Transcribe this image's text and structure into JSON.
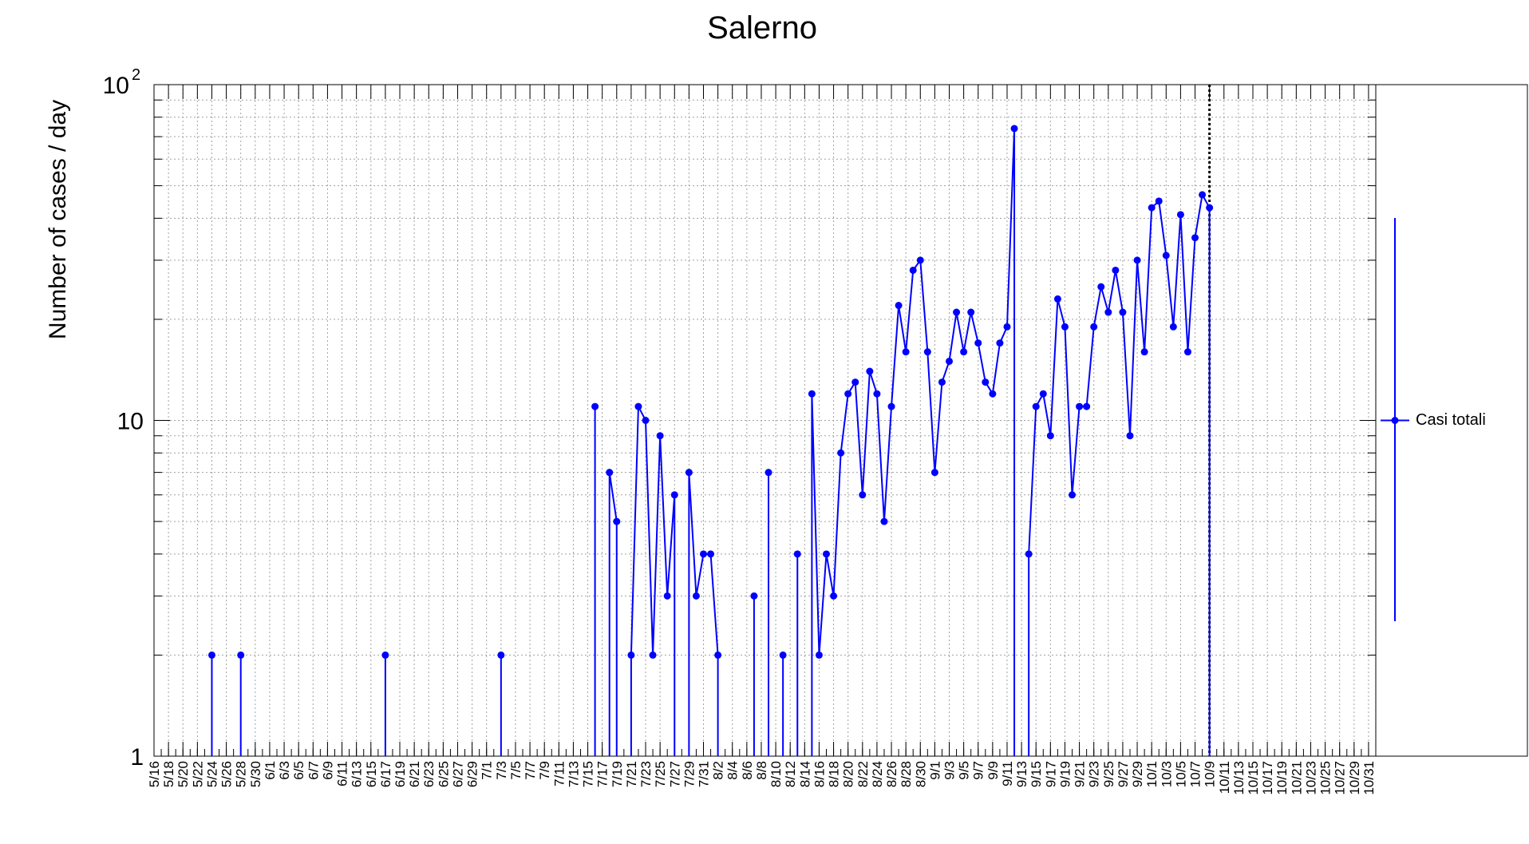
{
  "chart_data": {
    "type": "line",
    "title": "Salerno",
    "xlabel": "",
    "ylabel": "Number of cases / day",
    "y_scale": "log",
    "ylim": [
      1,
      100
    ],
    "y_tick_labels": [
      {
        "value": 1,
        "base": "1",
        "exp": ""
      },
      {
        "value": 10,
        "base": "10",
        "exp": ""
      },
      {
        "value": 100,
        "base": "10",
        "exp": "2"
      }
    ],
    "x_start": "5/16",
    "x_end": "11/1",
    "x_tick_labels": [
      "5/16",
      "5/18",
      "5/20",
      "5/22",
      "5/24",
      "5/26",
      "5/28",
      "5/30",
      "6/1",
      "6/3",
      "6/5",
      "6/7",
      "6/9",
      "6/11",
      "6/13",
      "6/15",
      "6/17",
      "6/19",
      "6/21",
      "6/23",
      "6/25",
      "6/27",
      "6/29",
      "7/1",
      "7/3",
      "7/5",
      "7/7",
      "7/9",
      "7/11",
      "7/13",
      "7/15",
      "7/17",
      "7/19",
      "7/21",
      "7/23",
      "7/25",
      "7/27",
      "7/29",
      "7/31",
      "8/2",
      "8/4",
      "8/6",
      "8/8",
      "8/10",
      "8/12",
      "8/14",
      "8/16",
      "8/18",
      "8/20",
      "8/22",
      "8/24",
      "8/26",
      "8/28",
      "8/30",
      "9/1",
      "9/3",
      "9/5",
      "9/7",
      "9/9",
      "9/11",
      "9/13",
      "9/15",
      "9/17",
      "9/19",
      "9/21",
      "9/23",
      "9/25",
      "9/27",
      "9/29",
      "10/1",
      "10/3",
      "10/5",
      "10/7",
      "10/9",
      "10/11",
      "10/13",
      "10/15",
      "10/17",
      "10/19",
      "10/21",
      "10/23",
      "10/25",
      "10/27",
      "10/29",
      "10/31"
    ],
    "grid": true,
    "vertical_marker": "10/9",
    "legend_position": "right",
    "series": [
      {
        "name": "Casi totali",
        "color": "#0000ff",
        "points": [
          {
            "x": "5/24",
            "y": 2
          },
          {
            "x": "5/28",
            "y": 2
          },
          {
            "x": "6/17",
            "y": 2
          },
          {
            "x": "7/3",
            "y": 2
          },
          {
            "x": "7/16",
            "y": 11
          },
          {
            "x": "7/18",
            "y": 7
          },
          {
            "x": "7/19",
            "y": 5
          },
          {
            "x": "7/21",
            "y": 2
          },
          {
            "x": "7/22",
            "y": 11
          },
          {
            "x": "7/23",
            "y": 10
          },
          {
            "x": "7/24",
            "y": 2
          },
          {
            "x": "7/25",
            "y": 9
          },
          {
            "x": "7/26",
            "y": 3
          },
          {
            "x": "7/27",
            "y": 6
          },
          {
            "x": "7/29",
            "y": 7
          },
          {
            "x": "7/30",
            "y": 3
          },
          {
            "x": "7/31",
            "y": 4
          },
          {
            "x": "8/1",
            "y": 4
          },
          {
            "x": "8/2",
            "y": 2
          },
          {
            "x": "8/7",
            "y": 3
          },
          {
            "x": "8/9",
            "y": 7
          },
          {
            "x": "8/11",
            "y": 2
          },
          {
            "x": "8/13",
            "y": 4
          },
          {
            "x": "8/15",
            "y": 12
          },
          {
            "x": "8/16",
            "y": 2
          },
          {
            "x": "8/17",
            "y": 4
          },
          {
            "x": "8/18",
            "y": 3
          },
          {
            "x": "8/19",
            "y": 8
          },
          {
            "x": "8/20",
            "y": 12
          },
          {
            "x": "8/21",
            "y": 13
          },
          {
            "x": "8/22",
            "y": 6
          },
          {
            "x": "8/23",
            "y": 14
          },
          {
            "x": "8/24",
            "y": 12
          },
          {
            "x": "8/25",
            "y": 5
          },
          {
            "x": "8/26",
            "y": 11
          },
          {
            "x": "8/27",
            "y": 22
          },
          {
            "x": "8/28",
            "y": 16
          },
          {
            "x": "8/29",
            "y": 28
          },
          {
            "x": "8/30",
            "y": 30
          },
          {
            "x": "8/31",
            "y": 16
          },
          {
            "x": "9/1",
            "y": 7
          },
          {
            "x": "9/2",
            "y": 13
          },
          {
            "x": "9/3",
            "y": 15
          },
          {
            "x": "9/4",
            "y": 21
          },
          {
            "x": "9/5",
            "y": 16
          },
          {
            "x": "9/6",
            "y": 21
          },
          {
            "x": "9/7",
            "y": 17
          },
          {
            "x": "9/8",
            "y": 13
          },
          {
            "x": "9/9",
            "y": 12
          },
          {
            "x": "9/10",
            "y": 17
          },
          {
            "x": "9/11",
            "y": 19
          },
          {
            "x": "9/12",
            "y": 74
          },
          {
            "x": "9/14",
            "y": 4
          },
          {
            "x": "9/15",
            "y": 11
          },
          {
            "x": "9/16",
            "y": 12
          },
          {
            "x": "9/17",
            "y": 9
          },
          {
            "x": "9/18",
            "y": 23
          },
          {
            "x": "9/19",
            "y": 19
          },
          {
            "x": "9/20",
            "y": 6
          },
          {
            "x": "9/21",
            "y": 11
          },
          {
            "x": "9/22",
            "y": 11
          },
          {
            "x": "9/23",
            "y": 19
          },
          {
            "x": "9/24",
            "y": 25
          },
          {
            "x": "9/25",
            "y": 21
          },
          {
            "x": "9/26",
            "y": 28
          },
          {
            "x": "9/27",
            "y": 21
          },
          {
            "x": "9/28",
            "y": 9
          },
          {
            "x": "9/29",
            "y": 30
          },
          {
            "x": "9/30",
            "y": 16
          },
          {
            "x": "10/1",
            "y": 43
          },
          {
            "x": "10/2",
            "y": 45
          },
          {
            "x": "10/3",
            "y": 31
          },
          {
            "x": "10/4",
            "y": 19
          },
          {
            "x": "10/5",
            "y": 41
          },
          {
            "x": "10/6",
            "y": 16
          },
          {
            "x": "10/7",
            "y": 35
          },
          {
            "x": "10/8",
            "y": 47
          },
          {
            "x": "10/9",
            "y": 43
          }
        ]
      }
    ]
  }
}
